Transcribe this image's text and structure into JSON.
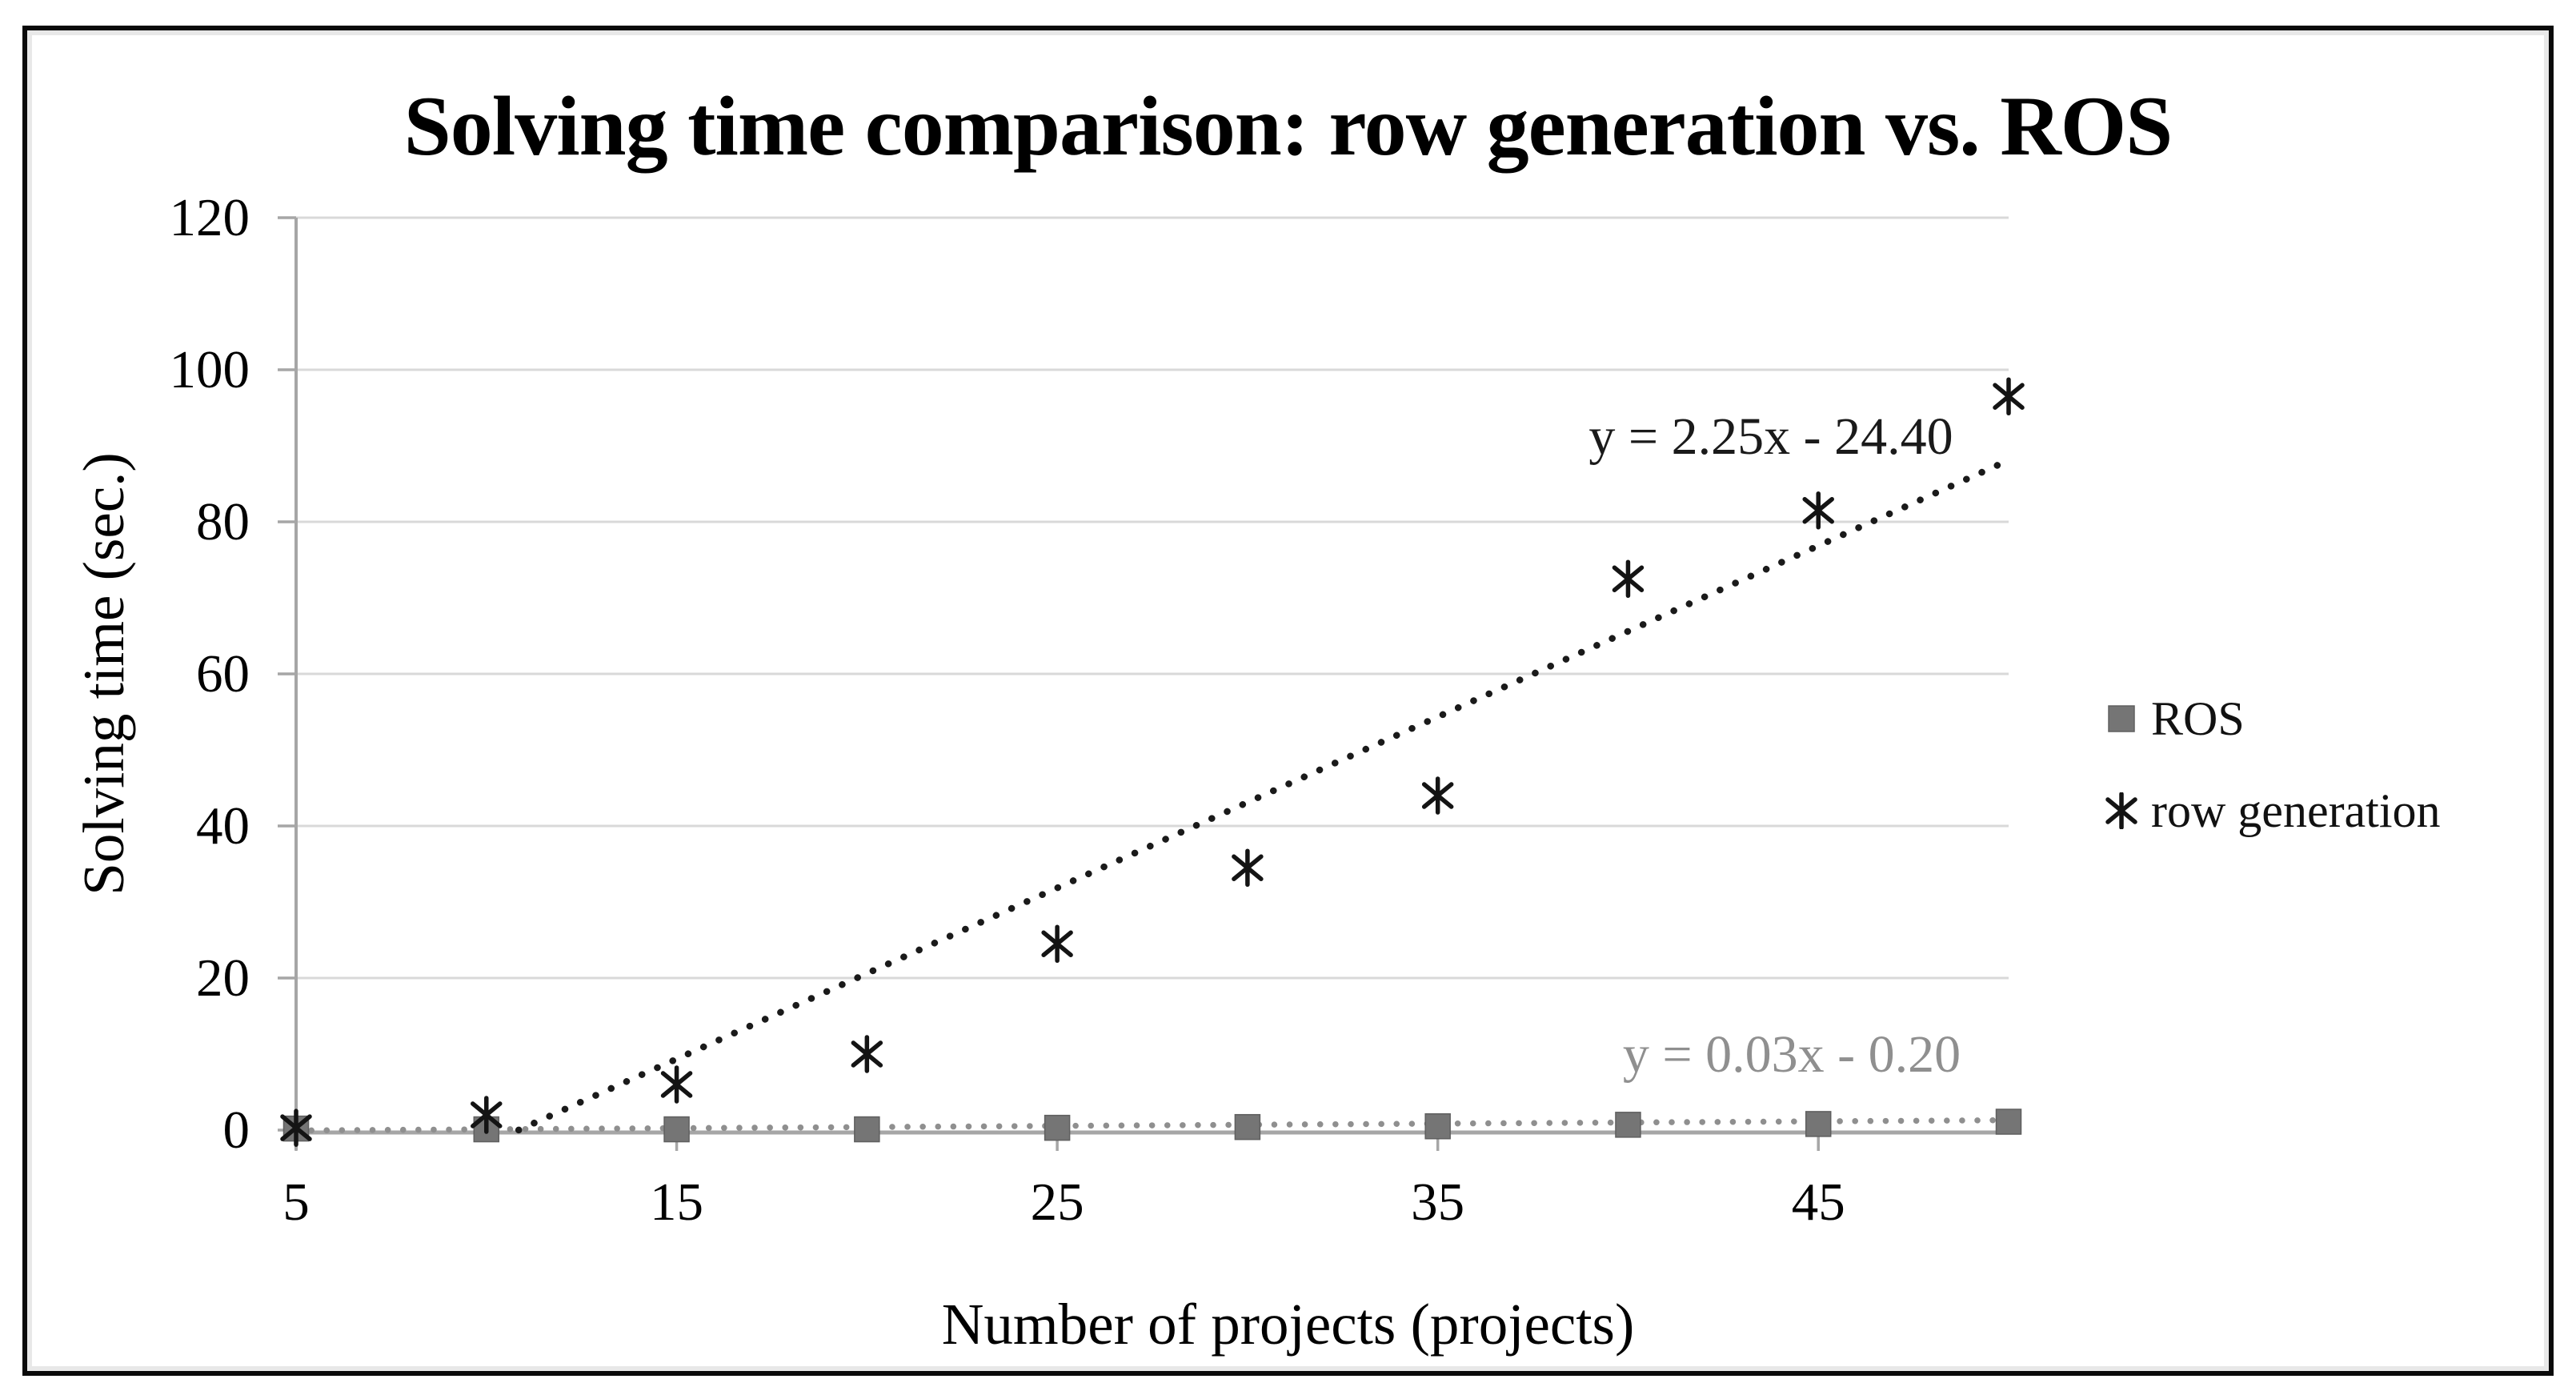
{
  "figure": {
    "title": "Solving time comparison: row generation vs. ROS",
    "x_axis_label": "Number of projects (projects)",
    "y_axis_label": "Solving time (sec.)"
  },
  "legend": {
    "items": [
      {
        "label": "ROS",
        "marker": "square-icon"
      },
      {
        "label": "row generation",
        "marker": "asterisk-icon"
      }
    ]
  },
  "annotations": {
    "trend_row_generation": "y = 2.25x - 24.40",
    "trend_ros": "y = 0.03x - 0.20"
  },
  "colors": {
    "background": "#ffffff",
    "frame": "#0a0a0a",
    "gridline": "#d9d9d9",
    "axis": "#a6a6a6",
    "ros_marker": "#757575",
    "ros_trend": "#8f8f8f",
    "row_generation_marker": "#141414",
    "row_generation_trend": "#1a1a1a"
  },
  "chart_data": {
    "type": "scatter",
    "title": "Solving time comparison: row generation vs. ROS",
    "xlabel": "Number of projects (projects)",
    "ylabel": "Solving time (sec.)",
    "xlim": [
      5,
      50
    ],
    "ylim": [
      0,
      120
    ],
    "x_ticks": [
      5,
      15,
      25,
      35,
      45
    ],
    "y_ticks": [
      0,
      20,
      40,
      60,
      80,
      100,
      120
    ],
    "grid": "horizontal",
    "legend_position": "right",
    "x": [
      5,
      10,
      15,
      20,
      25,
      30,
      35,
      40,
      45,
      50
    ],
    "series": [
      {
        "name": "ROS",
        "marker": "square",
        "values": [
          0.2,
          0.1,
          0.1,
          0.1,
          0.3,
          0.4,
          0.5,
          0.7,
          0.8,
          1.1
        ]
      },
      {
        "name": "row generation",
        "marker": "asterisk",
        "values": [
          0.3,
          2,
          6,
          10,
          24.5,
          34.5,
          44,
          72.5,
          81.5,
          96.5
        ]
      }
    ],
    "trendlines": [
      {
        "series": "row generation",
        "equation": "y = 2.25x - 24.40",
        "slope": 2.25,
        "intercept": -24.4,
        "x_start": 10.85,
        "x_end": 50,
        "style": "dotted"
      },
      {
        "series": "ROS",
        "equation": "y = 0.03x - 0.20",
        "slope": 0.03,
        "intercept": -0.2,
        "x_start": 5,
        "x_end": 50,
        "style": "dotted"
      }
    ]
  }
}
